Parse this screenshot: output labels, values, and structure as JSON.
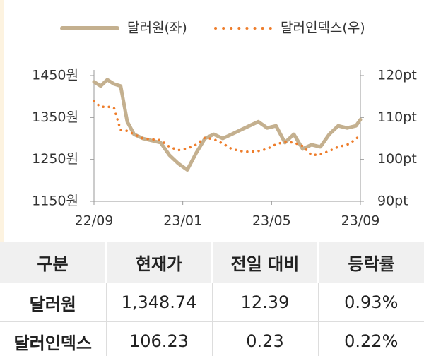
{
  "chart_data": {
    "type": "line",
    "legend": "top",
    "x": [
      0,
      0.3,
      0.6,
      0.9,
      1.2,
      1.5,
      1.8,
      2.2,
      2.6,
      3.0,
      3.4,
      3.8,
      4.2,
      4.6,
      5.0,
      5.4,
      5.8,
      6.2,
      6.6,
      7.0,
      7.4,
      7.8,
      8.2,
      8.6,
      9.0,
      9.4,
      9.8,
      10.2,
      10.6,
      11.0,
      11.4,
      11.8,
      12
    ],
    "xlim": [
      0,
      12
    ],
    "xticks": [
      {
        "value": 0,
        "label": "22/09"
      },
      {
        "value": 4,
        "label": "23/01"
      },
      {
        "value": 8,
        "label": "23/05"
      },
      {
        "value": 12,
        "label": "23/09"
      }
    ],
    "ylim": [
      1150,
      1450
    ],
    "yticks": [
      {
        "value": 1150,
        "label": "1150원"
      },
      {
        "value": 1250,
        "label": "1250원"
      },
      {
        "value": 1350,
        "label": "1350원"
      },
      {
        "value": 1450,
        "label": "1450원"
      }
    ],
    "y2lim": [
      90,
      120
    ],
    "y2ticks": [
      {
        "value": 90,
        "label": "90pt"
      },
      {
        "value": 100,
        "label": "100pt"
      },
      {
        "value": 110,
        "label": "110pt"
      },
      {
        "value": 120,
        "label": "120pt"
      }
    ],
    "series": [
      {
        "name": "달러원(좌)",
        "color": "#c4b08f",
        "style": "solid",
        "values": [
          1435,
          1425,
          1440,
          1430,
          1425,
          1340,
          1310,
          1300,
          1295,
          1290,
          1260,
          1240,
          1225,
          1265,
          1300,
          1310,
          1300,
          1310,
          1320,
          1330,
          1340,
          1325,
          1330,
          1290,
          1310,
          1275,
          1285,
          1280,
          1310,
          1330,
          1325,
          1330,
          1345
        ]
      },
      {
        "name": "달러인덱스(우)",
        "color": "#ee7d2b",
        "style": "dotted",
        "axis": "y2",
        "values": [
          113.9,
          112.5,
          112.6,
          112.3,
          107,
          106.8,
          106,
          105,
          104.8,
          104.6,
          103,
          102.2,
          102.6,
          103.5,
          105.2,
          104.8,
          103.8,
          102.5,
          102,
          101.8,
          102,
          102.5,
          103.6,
          104.2,
          104,
          103.2,
          101,
          101.2,
          102,
          103,
          103.5,
          104.8,
          106
        ]
      }
    ]
  },
  "table": {
    "columns": [
      "구분",
      "현재가",
      "전일 대비",
      "등락률"
    ],
    "rows": [
      [
        "달러원",
        "1,348.74",
        "12.39",
        "0.93%"
      ],
      [
        "달러인덱스",
        "106.23",
        "0.23",
        "0.22%"
      ]
    ]
  }
}
